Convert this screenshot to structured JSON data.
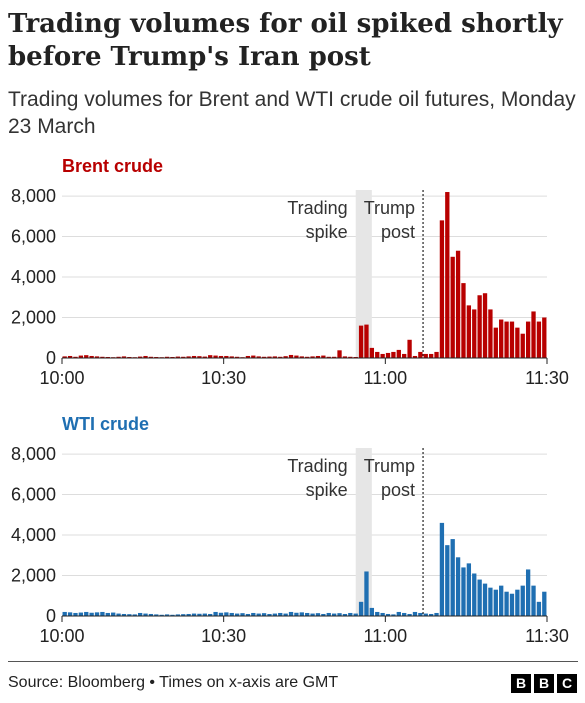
{
  "title": "Trading volumes for oil spiked shortly before Trump's Iran post",
  "subtitle": "Trading volumes for Brent and WTI crude oil futures, Monday 23 March",
  "source": "Source: Bloomberg • Times on x-axis are GMT",
  "logo": [
    "B",
    "B",
    "C"
  ],
  "chart_data": [
    {
      "type": "bar",
      "title": "Brent crude",
      "color": "#b80000",
      "x_unit": "minutes after 10:00 GMT",
      "x": [
        0,
        1,
        2,
        3,
        4,
        5,
        6,
        7,
        8,
        9,
        10,
        11,
        12,
        13,
        14,
        15,
        16,
        17,
        18,
        19,
        20,
        21,
        22,
        23,
        24,
        25,
        26,
        27,
        28,
        29,
        30,
        31,
        32,
        33,
        34,
        35,
        36,
        37,
        38,
        39,
        40,
        41,
        42,
        43,
        44,
        45,
        46,
        47,
        48,
        49,
        50,
        51,
        52,
        53,
        54,
        55,
        56,
        57,
        58,
        59,
        60,
        61,
        62,
        63,
        64,
        65,
        66,
        67,
        68,
        69,
        70,
        71,
        72,
        73,
        74,
        75,
        76,
        77,
        78,
        79,
        80,
        81,
        82,
        83,
        84,
        85,
        86,
        87,
        88,
        89
      ],
      "values": [
        80,
        100,
        60,
        120,
        140,
        100,
        80,
        60,
        50,
        40,
        60,
        80,
        50,
        40,
        70,
        100,
        60,
        50,
        40,
        60,
        50,
        70,
        60,
        80,
        100,
        90,
        70,
        140,
        120,
        100,
        100,
        80,
        60,
        40,
        100,
        120,
        80,
        60,
        70,
        80,
        60,
        90,
        150,
        120,
        80,
        60,
        80,
        100,
        120,
        60,
        60,
        380,
        80,
        60,
        50,
        1600,
        1650,
        500,
        300,
        200,
        250,
        300,
        400,
        200,
        900,
        100,
        300,
        200,
        200,
        300,
        6800,
        8200,
        5000,
        5300,
        3700,
        2600,
        2400,
        3100,
        3200,
        2400,
        1500,
        1900,
        1800,
        1800,
        1500,
        1200,
        1800,
        2300,
        1800,
        2000
      ],
      "xticks": [
        "10:00",
        "10:30",
        "11:00",
        "11:30"
      ],
      "xtick_values": [
        0,
        30,
        60,
        90
      ],
      "yticks": [
        "0",
        "2,000",
        "4,000",
        "6,000",
        "8,000"
      ],
      "ytick_values": [
        0,
        2000,
        4000,
        6000,
        8000
      ],
      "ylim": [
        0,
        8300
      ],
      "xlim": [
        0,
        90
      ],
      "grid": true,
      "annotations": [
        {
          "label_lines": [
            "Trading",
            "spike"
          ],
          "type": "shaded-band",
          "x_start": 54.5,
          "x_end": 57.5
        },
        {
          "label_lines": [
            "Trump",
            "post"
          ],
          "type": "dotted-line",
          "x": 67
        }
      ]
    },
    {
      "type": "bar",
      "title": "WTI crude",
      "color": "#1f6fb2",
      "x_unit": "minutes after 10:00 GMT",
      "x": [
        0,
        1,
        2,
        3,
        4,
        5,
        6,
        7,
        8,
        9,
        10,
        11,
        12,
        13,
        14,
        15,
        16,
        17,
        18,
        19,
        20,
        21,
        22,
        23,
        24,
        25,
        26,
        27,
        28,
        29,
        30,
        31,
        32,
        33,
        34,
        35,
        36,
        37,
        38,
        39,
        40,
        41,
        42,
        43,
        44,
        45,
        46,
        47,
        48,
        49,
        50,
        51,
        52,
        53,
        54,
        55,
        56,
        57,
        58,
        59,
        60,
        61,
        62,
        63,
        64,
        65,
        66,
        67,
        68,
        69,
        70,
        71,
        72,
        73,
        74,
        75,
        76,
        77,
        78,
        79,
        80,
        81,
        82,
        83,
        84,
        85,
        86,
        87,
        88,
        89
      ],
      "values": [
        200,
        180,
        150,
        170,
        200,
        160,
        180,
        200,
        150,
        170,
        120,
        100,
        90,
        80,
        150,
        120,
        100,
        80,
        60,
        80,
        60,
        80,
        90,
        100,
        120,
        110,
        120,
        100,
        200,
        160,
        180,
        150,
        120,
        140,
        100,
        150,
        120,
        140,
        100,
        120,
        150,
        120,
        200,
        160,
        180,
        150,
        120,
        140,
        100,
        150,
        120,
        140,
        100,
        150,
        120,
        700,
        2200,
        400,
        200,
        150,
        100,
        80,
        200,
        150,
        100,
        200,
        150,
        120,
        100,
        150,
        4600,
        3500,
        3800,
        2900,
        2400,
        2600,
        2100,
        1800,
        1600,
        1400,
        1300,
        1500,
        1200,
        1100,
        1300,
        1500,
        2300,
        1500,
        700,
        1200
      ],
      "xticks": [
        "10:00",
        "10:30",
        "11:00",
        "11:30"
      ],
      "xtick_values": [
        0,
        30,
        60,
        90
      ],
      "yticks": [
        "0",
        "2,000",
        "4,000",
        "6,000",
        "8,000"
      ],
      "ytick_values": [
        0,
        2000,
        4000,
        6000,
        8000
      ],
      "ylim": [
        0,
        8300
      ],
      "xlim": [
        0,
        90
      ],
      "grid": true,
      "annotations": [
        {
          "label_lines": [
            "Trading",
            "spike"
          ],
          "type": "shaded-band",
          "x_start": 54.5,
          "x_end": 57.5
        },
        {
          "label_lines": [
            "Trump",
            "post"
          ],
          "type": "dotted-line",
          "x": 67
        }
      ]
    }
  ]
}
